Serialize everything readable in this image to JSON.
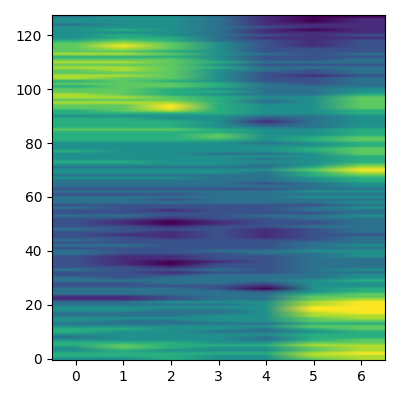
{
  "chart_data": {
    "type": "heatmap",
    "color": "viridis",
    "xlim": [
      -0.5,
      6.5
    ],
    "ylim": [
      -0.5,
      127.5
    ],
    "xticks": [
      0,
      1,
      2,
      3,
      4,
      5,
      6
    ],
    "yticks": [
      0,
      20,
      40,
      60,
      80,
      100,
      120
    ],
    "cells": [
      [
        5,
        5,
        6,
        5,
        5,
        7,
        8
      ],
      [
        6,
        6,
        6,
        5,
        5,
        8,
        8
      ],
      [
        6,
        6,
        6,
        6,
        6,
        8,
        9
      ],
      [
        5,
        6,
        5,
        5,
        5,
        7,
        8
      ],
      [
        5,
        7,
        6,
        5,
        5,
        7,
        8
      ],
      [
        6,
        7,
        6,
        6,
        6,
        8,
        8
      ],
      [
        6,
        6,
        6,
        5,
        5,
        7,
        7
      ],
      [
        5,
        5,
        5,
        5,
        4,
        6,
        7
      ],
      [
        4,
        5,
        5,
        5,
        4,
        6,
        6
      ],
      [
        5,
        5,
        5,
        5,
        5,
        6,
        6
      ],
      [
        6,
        5,
        5,
        4,
        4,
        5,
        6
      ],
      [
        6,
        6,
        5,
        5,
        4,
        6,
        7
      ],
      [
        5,
        5,
        5,
        5,
        5,
        7,
        7
      ],
      [
        4,
        4,
        4,
        4,
        4,
        6,
        6
      ],
      [
        5,
        4,
        4,
        5,
        5,
        7,
        7
      ],
      [
        5,
        5,
        5,
        5,
        5,
        7,
        8
      ],
      [
        4,
        4,
        4,
        5,
        5,
        8,
        8
      ],
      [
        4,
        4,
        4,
        4,
        5,
        8,
        9
      ],
      [
        5,
        5,
        4,
        4,
        5,
        9,
        9
      ],
      [
        5,
        5,
        5,
        5,
        5,
        9,
        9
      ],
      [
        4,
        4,
        4,
        4,
        5,
        8,
        9
      ],
      [
        4,
        4,
        5,
        5,
        5,
        8,
        9
      ],
      [
        2,
        2,
        3,
        4,
        4,
        7,
        8
      ],
      [
        2,
        2,
        3,
        4,
        4,
        7,
        7
      ],
      [
        4,
        4,
        4,
        4,
        4,
        6,
        7
      ],
      [
        4,
        4,
        4,
        4,
        3,
        5,
        6
      ],
      [
        4,
        4,
        4,
        3,
        1,
        5,
        6
      ],
      [
        3,
        3,
        3,
        3,
        2,
        5,
        5
      ],
      [
        3,
        3,
        4,
        4,
        3,
        5,
        5
      ],
      [
        4,
        4,
        4,
        4,
        4,
        5,
        6
      ],
      [
        4,
        3,
        4,
        4,
        4,
        4,
        5
      ],
      [
        3,
        3,
        3,
        4,
        4,
        4,
        5
      ],
      [
        3,
        3,
        2,
        3,
        3,
        4,
        4
      ],
      [
        4,
        3,
        3,
        4,
        3,
        4,
        5
      ],
      [
        3,
        3,
        2,
        3,
        3,
        4,
        4
      ],
      [
        3,
        2,
        1,
        3,
        3,
        4,
        4
      ],
      [
        3,
        2,
        1,
        2,
        3,
        4,
        4
      ],
      [
        3,
        2,
        2,
        3,
        3,
        4,
        4
      ],
      [
        3,
        2,
        2,
        3,
        3,
        4,
        5
      ],
      [
        4,
        3,
        3,
        3,
        4,
        4,
        5
      ],
      [
        4,
        3,
        3,
        4,
        4,
        5,
        5
      ],
      [
        3,
        3,
        3,
        3,
        3,
        4,
        4
      ],
      [
        4,
        4,
        3,
        3,
        3,
        4,
        5
      ],
      [
        3,
        3,
        3,
        3,
        3,
        4,
        4
      ],
      [
        4,
        3,
        3,
        3,
        3,
        3,
        4
      ],
      [
        3,
        3,
        2,
        3,
        2,
        3,
        4
      ],
      [
        3,
        2,
        2,
        3,
        2,
        3,
        3
      ],
      [
        3,
        3,
        2,
        3,
        2,
        3,
        4
      ],
      [
        4,
        3,
        3,
        3,
        2,
        3,
        4
      ],
      [
        3,
        3,
        2,
        3,
        3,
        4,
        4
      ],
      [
        3,
        2,
        1,
        2,
        3,
        3,
        4
      ],
      [
        3,
        2,
        1,
        2,
        3,
        3,
        4
      ],
      [
        3,
        3,
        2,
        3,
        3,
        4,
        4
      ],
      [
        4,
        4,
        3,
        3,
        4,
        4,
        5
      ],
      [
        3,
        3,
        3,
        3,
        3,
        3,
        4
      ],
      [
        3,
        3,
        2,
        3,
        3,
        4,
        4
      ],
      [
        4,
        3,
        3,
        3,
        3,
        4,
        5
      ],
      [
        3,
        3,
        3,
        3,
        3,
        3,
        4
      ],
      [
        4,
        4,
        4,
        4,
        4,
        4,
        5
      ],
      [
        4,
        4,
        3,
        4,
        4,
        4,
        4
      ],
      [
        4,
        4,
        4,
        4,
        4,
        5,
        5
      ],
      [
        3,
        3,
        3,
        4,
        4,
        4,
        4
      ],
      [
        4,
        4,
        4,
        4,
        4,
        5,
        5
      ],
      [
        3,
        3,
        3,
        3,
        3,
        4,
        4
      ],
      [
        4,
        4,
        4,
        4,
        4,
        4,
        5
      ],
      [
        4,
        4,
        4,
        4,
        3,
        4,
        5
      ],
      [
        4,
        4,
        4,
        4,
        4,
        5,
        6
      ],
      [
        5,
        5,
        5,
        4,
        4,
        5,
        6
      ],
      [
        4,
        4,
        4,
        4,
        4,
        6,
        7
      ],
      [
        5,
        5,
        5,
        5,
        4,
        6,
        8
      ],
      [
        5,
        5,
        5,
        5,
        5,
        7,
        9
      ],
      [
        4,
        4,
        4,
        4,
        4,
        6,
        8
      ],
      [
        5,
        5,
        5,
        5,
        4,
        5,
        7
      ],
      [
        6,
        6,
        5,
        5,
        5,
        5,
        6
      ],
      [
        5,
        5,
        5,
        5,
        4,
        5,
        6
      ],
      [
        5,
        5,
        5,
        5,
        5,
        5,
        6
      ],
      [
        5,
        5,
        5,
        4,
        4,
        5,
        7
      ],
      [
        6,
        5,
        5,
        5,
        5,
        6,
        7
      ],
      [
        5,
        5,
        5,
        5,
        5,
        6,
        7
      ],
      [
        5,
        5,
        5,
        5,
        5,
        5,
        6
      ],
      [
        5,
        5,
        5,
        5,
        4,
        5,
        6
      ],
      [
        6,
        6,
        6,
        6,
        5,
        6,
        7
      ],
      [
        6,
        6,
        6,
        7,
        5,
        6,
        7
      ],
      [
        6,
        6,
        6,
        7,
        5,
        5,
        6
      ],
      [
        6,
        6,
        6,
        6,
        5,
        5,
        6
      ],
      [
        7,
        7,
        7,
        6,
        5,
        5,
        6
      ],
      [
        6,
        6,
        6,
        5,
        4,
        4,
        5
      ],
      [
        6,
        6,
        6,
        5,
        3,
        4,
        5
      ],
      [
        6,
        6,
        6,
        5,
        2,
        4,
        5
      ],
      [
        6,
        6,
        5,
        5,
        3,
        4,
        5
      ],
      [
        5,
        5,
        5,
        5,
        4,
        4,
        5
      ],
      [
        6,
        6,
        6,
        6,
        5,
        5,
        6
      ],
      [
        6,
        7,
        8,
        6,
        5,
        5,
        6
      ],
      [
        7,
        7,
        9,
        6,
        5,
        5,
        7
      ],
      [
        7,
        7,
        9,
        6,
        5,
        5,
        7
      ],
      [
        8,
        8,
        8,
        6,
        4,
        5,
        7
      ],
      [
        7,
        7,
        7,
        6,
        4,
        5,
        7
      ],
      [
        8,
        8,
        7,
        6,
        5,
        5,
        7
      ],
      [
        8,
        7,
        6,
        5,
        4,
        4,
        6
      ],
      [
        7,
        7,
        6,
        6,
        4,
        4,
        5
      ],
      [
        7,
        7,
        6,
        5,
        4,
        4,
        5
      ],
      [
        6,
        7,
        7,
        6,
        4,
        4,
        4
      ],
      [
        7,
        7,
        7,
        6,
        4,
        3,
        4
      ],
      [
        6,
        7,
        6,
        5,
        3,
        3,
        4
      ],
      [
        8,
        7,
        7,
        5,
        3,
        3,
        4
      ],
      [
        8,
        8,
        7,
        5,
        3,
        2,
        3
      ],
      [
        7,
        7,
        7,
        5,
        3,
        3,
        4
      ],
      [
        7,
        8,
        7,
        5,
        4,
        3,
        4
      ],
      [
        8,
        8,
        7,
        6,
        4,
        4,
        4
      ],
      [
        7,
        7,
        7,
        5,
        3,
        3,
        3
      ],
      [
        8,
        8,
        7,
        6,
        4,
        4,
        4
      ],
      [
        7,
        7,
        7,
        5,
        3,
        3,
        4
      ],
      [
        6,
        6,
        6,
        5,
        3,
        3,
        3
      ],
      [
        8,
        8,
        7,
        5,
        4,
        3,
        4
      ],
      [
        7,
        7,
        6,
        5,
        3,
        3,
        3
      ],
      [
        7,
        8,
        7,
        5,
        3,
        3,
        3
      ],
      [
        7,
        9,
        7,
        5,
        3,
        2,
        3
      ],
      [
        7,
        8,
        7,
        5,
        3,
        2,
        3
      ],
      [
        6,
        7,
        6,
        4,
        3,
        2,
        3
      ],
      [
        5,
        6,
        6,
        4,
        2,
        2,
        2
      ],
      [
        5,
        6,
        5,
        4,
        3,
        2,
        3
      ],
      [
        5,
        5,
        5,
        4,
        2,
        2,
        2
      ],
      [
        5,
        6,
        5,
        4,
        2,
        1,
        2
      ],
      [
        5,
        5,
        5,
        4,
        3,
        2,
        2
      ],
      [
        4,
        5,
        5,
        4,
        2,
        2,
        2
      ],
      [
        5,
        5,
        5,
        4,
        2,
        1,
        2
      ],
      [
        5,
        5,
        5,
        4,
        2,
        1,
        2
      ],
      [
        4,
        5,
        5,
        4,
        2,
        1,
        1
      ]
    ]
  }
}
